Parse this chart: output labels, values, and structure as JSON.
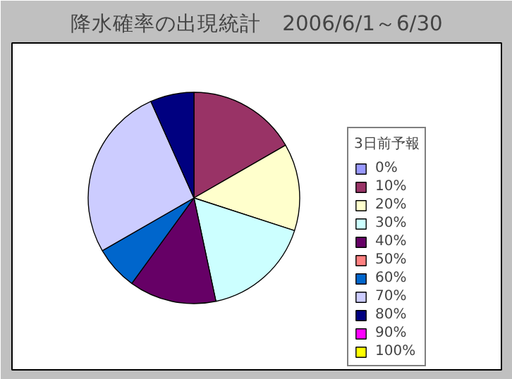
{
  "chart_data": {
    "type": "pie",
    "title": "降水確率の出現統計　2006/6/1～6/30",
    "legend_title": "3日前予報",
    "legend": "right",
    "categories": [
      "0%",
      "10%",
      "20%",
      "30%",
      "40%",
      "50%",
      "60%",
      "70%",
      "80%",
      "90%",
      "100%"
    ],
    "values": [
      0,
      16.67,
      13.33,
      16.67,
      13.33,
      0,
      6.67,
      26.66,
      6.67,
      0,
      0
    ],
    "colors": [
      "#9999ff",
      "#993366",
      "#ffffcc",
      "#ccffff",
      "#660066",
      "#ff8080",
      "#0066cc",
      "#ccccff",
      "#000080",
      "#ff00ff",
      "#ffff00"
    ]
  }
}
